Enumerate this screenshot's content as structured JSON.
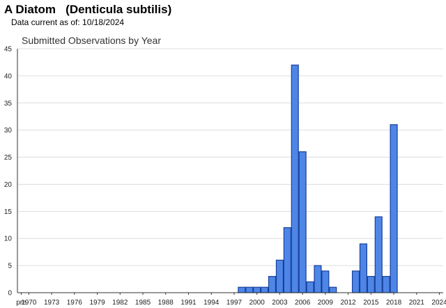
{
  "header": {
    "species": "A Diatom   (Denticula subtilis)",
    "data_current_label": "Data current as of: 10/18/2024"
  },
  "colors": {
    "bar_fill": "#4d86e6",
    "bar_stroke": "#1a3f9a",
    "grid": "#dddddd",
    "axis": "#333333"
  },
  "chart_data": {
    "type": "bar",
    "title": "Submitted Observations by Year",
    "xlabel": "",
    "ylabel": "",
    "ylim": [
      0,
      45
    ],
    "y_ticks": [
      0,
      5,
      10,
      15,
      20,
      25,
      30,
      35,
      40,
      45
    ],
    "grid": true,
    "categories": [
      "pre",
      "1970",
      "1971",
      "1972",
      "1973",
      "1974",
      "1975",
      "1976",
      "1977",
      "1978",
      "1979",
      "1980",
      "1981",
      "1982",
      "1983",
      "1984",
      "1985",
      "1986",
      "1987",
      "1988",
      "1989",
      "1990",
      "1991",
      "1992",
      "1993",
      "1994",
      "1995",
      "1996",
      "1997",
      "1998",
      "1999",
      "2000",
      "2001",
      "2002",
      "2003",
      "2004",
      "2005",
      "2006",
      "2007",
      "2008",
      "2009",
      "2010",
      "2011",
      "2012",
      "2013",
      "2014",
      "2015",
      "2016",
      "2017",
      "2018",
      "2019",
      "2020",
      "2021",
      "2022",
      "2023",
      "2024"
    ],
    "x_tick_labels": [
      "pre",
      "1970",
      "1973",
      "1976",
      "1979",
      "1982",
      "1985",
      "1988",
      "1991",
      "1994",
      "1997",
      "2000",
      "2003",
      "2006",
      "2009",
      "2012",
      "2015",
      "2018",
      "2021",
      "2024"
    ],
    "values": [
      0,
      0,
      0,
      0,
      0,
      0,
      0,
      0,
      0,
      0,
      0,
      0,
      0,
      0,
      0,
      0,
      0,
      0,
      0,
      0,
      0,
      0,
      0,
      0,
      0,
      0,
      0,
      0,
      0,
      1,
      1,
      1,
      1,
      3,
      6,
      12,
      42,
      26,
      2,
      5,
      4,
      1,
      0,
      0,
      4,
      9,
      3,
      14,
      3,
      31,
      0,
      0,
      0,
      0,
      0,
      0
    ]
  }
}
